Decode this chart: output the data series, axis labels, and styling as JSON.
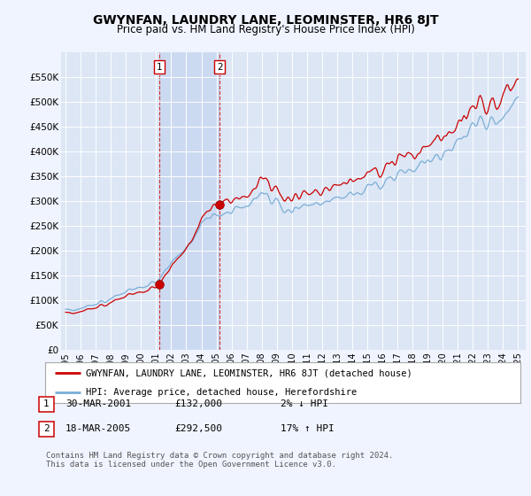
{
  "title": "GWYNFAN, LAUNDRY LANE, LEOMINSTER, HR6 8JT",
  "subtitle": "Price paid vs. HM Land Registry's House Price Index (HPI)",
  "background_color": "#f0f4ff",
  "plot_bg_color": "#dce6f5",
  "shade_color": "#c8d8f0",
  "legend_line1": "GWYNFAN, LAUNDRY LANE, LEOMINSTER, HR6 8JT (detached house)",
  "legend_line2": "HPI: Average price, detached house, Herefordshire",
  "sale1_date": "30-MAR-2001",
  "sale1_price": "£132,000",
  "sale1_hpi": "2% ↓ HPI",
  "sale2_date": "18-MAR-2005",
  "sale2_price": "£292,500",
  "sale2_hpi": "17% ↑ HPI",
  "footer": "Contains HM Land Registry data © Crown copyright and database right 2024.\nThis data is licensed under the Open Government Licence v3.0.",
  "hpi_color": "#7aaed6",
  "price_color": "#cc0000",
  "sale_marker_color": "#cc0000",
  "vline_color": "#cc0000",
  "ylim": [
    0,
    600000
  ],
  "yticks": [
    0,
    50000,
    100000,
    150000,
    200000,
    250000,
    300000,
    350000,
    400000,
    450000,
    500000,
    550000
  ],
  "ytick_labels": [
    "£0",
    "£50K",
    "£100K",
    "£150K",
    "£200K",
    "£250K",
    "£300K",
    "£350K",
    "£400K",
    "£450K",
    "£500K",
    "£550K"
  ],
  "sale1_year": 2001.22,
  "sale2_year": 2005.22,
  "sale1_price_val": 132000,
  "sale2_price_val": 292500
}
